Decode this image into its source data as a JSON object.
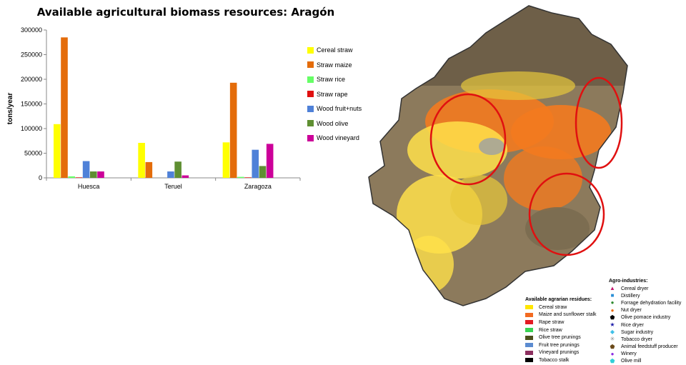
{
  "chart_data": {
    "type": "bar",
    "title": "Available agricultural biomass resources:  Aragón",
    "ylabel": "tons/year",
    "xlabel": "",
    "ylim": [
      0,
      300000
    ],
    "yticks": [
      0,
      50000,
      100000,
      150000,
      200000,
      250000,
      300000
    ],
    "categories": [
      "Huesca",
      "Teruel",
      "Zaragoza"
    ],
    "series": [
      {
        "name": "Cereal straw",
        "color": "#ffff00",
        "values": [
          109000,
          71000,
          72000
        ]
      },
      {
        "name": "Straw maize",
        "color": "#e46c0a",
        "values": [
          285000,
          32000,
          193000
        ]
      },
      {
        "name": "Straw rice",
        "color": "#66ff66",
        "values": [
          3000,
          0,
          2000
        ]
      },
      {
        "name": "Straw rape",
        "color": "#e01010",
        "values": [
          1000,
          0,
          1000
        ]
      },
      {
        "name": "Wood fruit+nuts",
        "color": "#4f81d8",
        "values": [
          34000,
          13000,
          57000
        ]
      },
      {
        "name": "Wood olive",
        "color": "#5f8f32",
        "values": [
          13000,
          33000,
          24000
        ]
      },
      {
        "name": "Wood vineyard",
        "color": "#cc0099",
        "values": [
          13000,
          5000,
          69000
        ]
      }
    ],
    "grid": false,
    "legend": "right"
  },
  "map": {
    "legend_residues": {
      "title": "Available agrarian residues:",
      "items": [
        {
          "label": "Cereal straw",
          "color": "#ffe600"
        },
        {
          "label": "Maize and sunflower stalk",
          "color": "#f26a21"
        },
        {
          "label": "Rape straw",
          "color": "#e31b23"
        },
        {
          "label": "Rice straw",
          "color": "#39d353"
        },
        {
          "label": "Olive tree prunings",
          "color": "#4b4f1c"
        },
        {
          "label": "Fruit tree prunings",
          "color": "#5b8bd0"
        },
        {
          "label": "Vineyard prunings",
          "color": "#8c2f5f"
        },
        {
          "label": "Tobacco stalk",
          "color": "#000000"
        }
      ]
    },
    "legend_industries": {
      "title": "Agro-industries:",
      "items": [
        {
          "label": "Cereal dryer",
          "symbol": "▲",
          "color": "#c2186f"
        },
        {
          "label": "Distillery",
          "symbol": "■",
          "color": "#2a8fd6"
        },
        {
          "label": "Forrage dehydration facility",
          "symbol": "●",
          "color": "#2f8a2f"
        },
        {
          "label": "Nut dryer",
          "symbol": "●",
          "color": "#e86a10"
        },
        {
          "label": "Olive pomace industry",
          "symbol": "⬟",
          "color": "#000000"
        },
        {
          "label": "Rice dryer",
          "symbol": "★",
          "color": "#1a1aa8"
        },
        {
          "label": "Sugar industry",
          "symbol": "◆",
          "color": "#40c0e8"
        },
        {
          "label": "Tobacco dryer",
          "symbol": "✳",
          "color": "#8a8a8a"
        },
        {
          "label": "Animal feedstuff producer",
          "symbol": "⬟",
          "color": "#6b4a1a"
        },
        {
          "label": "Winery",
          "symbol": "●",
          "color": "#8a2be2"
        },
        {
          "label": "Olive mill",
          "symbol": "⬟",
          "color": "#30d0d8"
        }
      ]
    }
  }
}
